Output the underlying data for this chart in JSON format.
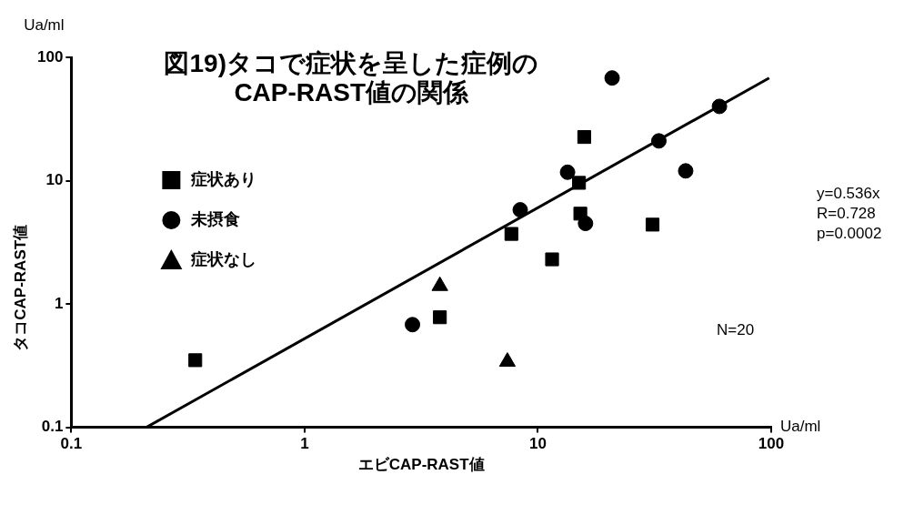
{
  "chart_data": {
    "type": "scatter",
    "title": "図19)タコで症状を呈した症例の\nCAP-RAST値の関係",
    "xlabel": "エビCAP-RAST値",
    "ylabel": "タコCAP-RAST値",
    "annotations": [
      "Ua/ml",
      "Ua/ml",
      "y=0.536x\nR=0.728\np=0.0002",
      "N=20"
    ],
    "log": "xy",
    "xlim": [
      0.1,
      100
    ],
    "ylim": [
      0.1,
      100
    ],
    "xticks": [
      0.1,
      1,
      10,
      100
    ],
    "yticks": [
      0.1,
      1,
      10,
      100
    ],
    "grid": false,
    "legend": "top left",
    "series": [
      {
        "name": "症状あり",
        "color": "#000000",
        "marker": "square",
        "x": [
          0.34,
          3.8,
          7.7,
          11.5,
          15.2,
          15,
          15.8,
          31
        ],
        "values": [
          0.35,
          0.78,
          3.7,
          2.3,
          5.4,
          9.6,
          22.6,
          4.4
        ]
      },
      {
        "name": "未摂食",
        "color": "#000000",
        "marker": "circle",
        "x": [
          2.9,
          8.4,
          16,
          13.4,
          43,
          33,
          60,
          20.8
        ],
        "values": [
          0.68,
          5.8,
          4.5,
          11.7,
          12,
          21,
          40,
          68
        ]
      },
      {
        "name": "症状なし",
        "color": "#000000",
        "marker": "triangle",
        "x": [
          3.8,
          7.4
        ],
        "values": [
          1.4,
          0.34
        ]
      },
      {
        "type": "line",
        "color": "#000000",
        "marker": "none",
        "x": [
          0.21,
          98
        ],
        "values": [
          0.1,
          68
        ]
      }
    ]
  }
}
